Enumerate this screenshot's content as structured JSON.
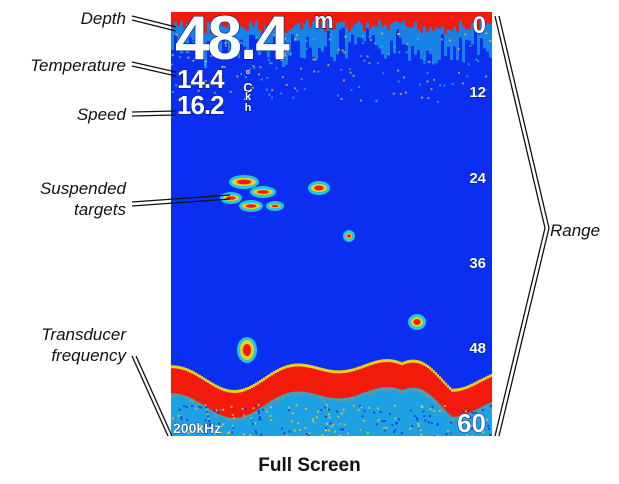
{
  "callouts": {
    "depth": "Depth",
    "temperature": "Temperature",
    "speed": "Speed",
    "suspended_targets_line1": "Suspended",
    "suspended_targets_line2": "targets",
    "transducer_frequency_line1": "Transducer",
    "transducer_frequency_line2": "frequency",
    "range": "Range"
  },
  "sonar": {
    "depth_value": "48.4",
    "depth_unit": "m",
    "temperature_value": "14.4",
    "temperature_unit_top": "°",
    "temperature_unit_bottom": "C",
    "speed_value": "16.2",
    "speed_unit_top": "k",
    "speed_unit_bottom": "h",
    "range_labels": [
      "0",
      "12",
      "24",
      "36",
      "48",
      "60"
    ],
    "frequency": "200kHz"
  },
  "caption": "Full Screen",
  "colors": {
    "water": "#0b2ff0",
    "bottom_strong": "#f21a0a",
    "bottom_weak": "#22c8e0",
    "return_mid": "#e8d21a"
  }
}
